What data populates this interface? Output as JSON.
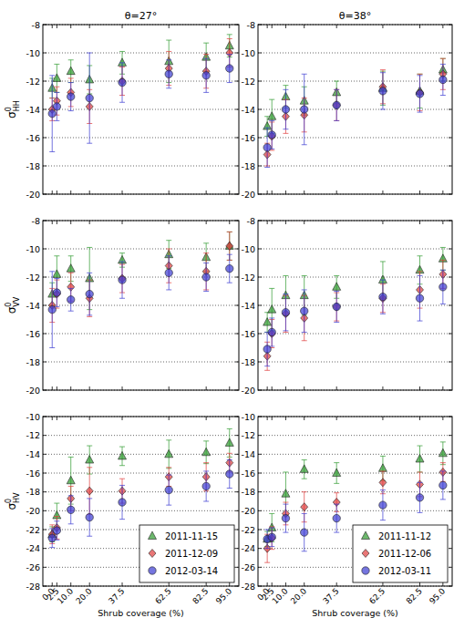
{
  "chart_data": [
    {
      "type": "scatter",
      "title": "θ=27°",
      "ylabel": {
        "text": "σ",
        "sup": "0",
        "sub": "HH"
      },
      "x": [
        0,
        2.5,
        10,
        20,
        37.5,
        62.5,
        82.5,
        95
      ],
      "xlim": [
        -5,
        100
      ],
      "xticks": [
        0,
        2.5,
        10,
        20,
        37.5,
        62.5,
        82.5,
        95
      ],
      "ylim": [
        -20,
        -8
      ],
      "yticks": [
        -20,
        -18,
        -16,
        -14,
        -12,
        -10,
        -8
      ],
      "grid": "y",
      "tick_labels": "y",
      "series": [
        {
          "color": "#2e9a2e",
          "marker": "triangle",
          "values": [
            -12.5,
            -11.8,
            -11.3,
            -11.9,
            -10.7,
            -10.6,
            -10.3,
            -9.5
          ],
          "errors": [
            0.7,
            1.0,
            0.8,
            1.0,
            0.8,
            1.5,
            1.0,
            0.8
          ]
        },
        {
          "color": "#e03c3c",
          "marker": "diamond",
          "values": [
            -14.0,
            -13.4,
            -12.8,
            -13.8,
            -12.0,
            -11.1,
            -11.3,
            -10.0
          ],
          "errors": [
            0.8,
            1.0,
            1.0,
            1.2,
            1.0,
            1.2,
            1.2,
            1.0
          ]
        },
        {
          "color": "#3b3bd1",
          "marker": "circle",
          "values": [
            -14.3,
            -13.8,
            -13.1,
            -13.2,
            -12.1,
            -11.5,
            -11.6,
            -11.1
          ],
          "errors": [
            2.7,
            1.0,
            1.0,
            3.2,
            1.4,
            1.0,
            1.2,
            1.0
          ]
        }
      ]
    },
    {
      "type": "scatter",
      "title": "θ=38°",
      "x": [
        0,
        2.5,
        10,
        20,
        37.5,
        62.5,
        82.5,
        95
      ],
      "xlim": [
        -5,
        100
      ],
      "xticks": [
        0,
        2.5,
        10,
        20,
        37.5,
        62.5,
        82.5,
        95
      ],
      "ylim": [
        -20,
        -8
      ],
      "yticks": [
        -20,
        -18,
        -16,
        -14,
        -12,
        -10,
        -8
      ],
      "grid": "y",
      "tick_labels": "y",
      "series": [
        {
          "color": "#2e9a2e",
          "marker": "triangle",
          "values": [
            -15.2,
            -14.5,
            -13.1,
            -13.4,
            -12.8,
            -12.5,
            -12.7,
            -11.2
          ],
          "errors": [
            0.7,
            1.2,
            0.8,
            1.0,
            0.8,
            1.2,
            1.2,
            0.8
          ]
        },
        {
          "color": "#e03c3c",
          "marker": "diamond",
          "values": [
            -17.2,
            -15.9,
            -14.5,
            -14.4,
            -13.7,
            -12.4,
            -12.8,
            -11.5
          ],
          "errors": [
            0.8,
            1.0,
            1.2,
            1.2,
            1.1,
            1.2,
            1.3,
            1.1
          ]
        },
        {
          "color": "#3b3bd1",
          "marker": "circle",
          "values": [
            -16.7,
            -15.8,
            -14.0,
            -14.0,
            -13.7,
            -12.7,
            -12.9,
            -11.9
          ],
          "errors": [
            1.4,
            1.0,
            1.4,
            2.5,
            1.1,
            1.3,
            1.3,
            1.1
          ]
        }
      ]
    },
    {
      "type": "scatter",
      "ylabel": {
        "text": "σ",
        "sup": "0",
        "sub": "VV"
      },
      "x": [
        0,
        2.5,
        10,
        20,
        37.5,
        62.5,
        82.5,
        95
      ],
      "xlim": [
        -5,
        100
      ],
      "xticks": [
        0,
        2.5,
        10,
        20,
        37.5,
        62.5,
        82.5,
        95
      ],
      "ylim": [
        -20,
        -8
      ],
      "yticks": [
        -20,
        -18,
        -16,
        -14,
        -12,
        -10,
        -8
      ],
      "grid": "y",
      "tick_labels": "y",
      "series": [
        {
          "color": "#2e9a2e",
          "marker": "triangle",
          "values": [
            -13.2,
            -11.8,
            -11.4,
            -12.1,
            -10.8,
            -10.4,
            -10.6,
            -9.8
          ],
          "errors": [
            0.8,
            1.3,
            0.9,
            2.2,
            0.5,
            1.0,
            1.0,
            1.0
          ]
        },
        {
          "color": "#e03c3c",
          "marker": "diamond",
          "values": [
            -14.0,
            -13.2,
            -12.7,
            -13.5,
            -12.1,
            -11.2,
            -11.6,
            -9.8
          ],
          "errors": [
            1.2,
            1.0,
            1.0,
            1.3,
            1.0,
            1.2,
            1.3,
            1.0
          ]
        },
        {
          "color": "#3b3bd1",
          "marker": "circle",
          "values": [
            -14.3,
            -13.1,
            -13.6,
            -13.2,
            -12.2,
            -11.7,
            -12.0,
            -11.4
          ],
          "errors": [
            2.7,
            1.0,
            0.8,
            1.5,
            1.3,
            1.2,
            1.0,
            1.0
          ]
        }
      ]
    },
    {
      "type": "scatter",
      "x": [
        0,
        2.5,
        10,
        20,
        37.5,
        62.5,
        82.5,
        95
      ],
      "xlim": [
        -5,
        100
      ],
      "xticks": [
        0,
        2.5,
        10,
        20,
        37.5,
        62.5,
        82.5,
        95
      ],
      "ylim": [
        -20,
        -8
      ],
      "yticks": [
        -20,
        -18,
        -16,
        -14,
        -12,
        -10,
        -8
      ],
      "grid": "y",
      "tick_labels": "y",
      "series": [
        {
          "color": "#2e9a2e",
          "marker": "triangle",
          "values": [
            -15.2,
            -14.3,
            -13.3,
            -13.3,
            -12.7,
            -12.2,
            -11.5,
            -10.7
          ],
          "errors": [
            0.7,
            1.5,
            1.4,
            1.4,
            0.8,
            1.3,
            1.0,
            0.8
          ]
        },
        {
          "color": "#e03c3c",
          "marker": "diamond",
          "values": [
            -17.6,
            -16.0,
            -14.6,
            -14.9,
            -14.1,
            -13.5,
            -12.9,
            -11.8
          ],
          "errors": [
            1.0,
            1.0,
            1.3,
            1.6,
            1.0,
            1.0,
            1.3,
            1.0
          ]
        },
        {
          "color": "#3b3bd1",
          "marker": "circle",
          "values": [
            -17.1,
            -15.9,
            -14.5,
            -14.4,
            -14.1,
            -13.4,
            -13.5,
            -12.7
          ],
          "errors": [
            1.2,
            1.0,
            1.3,
            1.5,
            1.1,
            1.2,
            1.6,
            1.2
          ]
        }
      ]
    },
    {
      "type": "scatter",
      "ylabel": {
        "text": "σ",
        "sup": "0",
        "sub": "HV"
      },
      "xlabel": "Shrub coverage (%)",
      "x": [
        0,
        2.5,
        10,
        20,
        37.5,
        62.5,
        82.5,
        95
      ],
      "xlim": [
        -5,
        100
      ],
      "xticks": [
        {
          "value": 0,
          "label": "0.0"
        },
        2.5,
        {
          "value": 10,
          "label": "10.0"
        },
        {
          "value": 20,
          "label": "20.0"
        },
        37.5,
        62.5,
        82.5,
        {
          "value": 95,
          "label": "95.0"
        }
      ],
      "ylim": [
        -28,
        -10
      ],
      "yticks": [
        -28,
        -26,
        -24,
        -22,
        -20,
        -18,
        -16,
        -14,
        -12,
        -10
      ],
      "grid": "y",
      "legend": "lower right",
      "series": [
        {
          "name": "2011-11-15",
          "color": "#2e9a2e",
          "marker": "triangle",
          "values": [
            -22.5,
            -20.5,
            -16.8,
            -14.6,
            -14.2,
            -14.0,
            -13.8,
            -12.8
          ],
          "errors": [
            0.8,
            1.3,
            2.5,
            1.5,
            1.0,
            1.5,
            1.2,
            1.5
          ]
        },
        {
          "name": "2011-12-09",
          "color": "#e03c3c",
          "marker": "diamond",
          "values": [
            -22.5,
            -21.8,
            -18.7,
            -17.9,
            -17.9,
            -16.4,
            -16.4,
            -14.9
          ],
          "errors": [
            1.0,
            1.2,
            1.3,
            2.5,
            1.3,
            1.0,
            1.5,
            1.0
          ]
        },
        {
          "name": "2012-03-14",
          "color": "#3b3bd1",
          "marker": "circle",
          "values": [
            -22.9,
            -22.1,
            -19.9,
            -20.7,
            -19.1,
            -17.8,
            -17.4,
            -16.1
          ],
          "errors": [
            1.0,
            1.0,
            1.5,
            2.0,
            1.8,
            1.6,
            1.6,
            1.5
          ]
        }
      ]
    },
    {
      "type": "scatter",
      "xlabel": "Shrub coverage (%)",
      "x": [
        0,
        2.5,
        10,
        20,
        37.5,
        62.5,
        82.5,
        95
      ],
      "xlim": [
        -5,
        100
      ],
      "xticks": [
        {
          "value": 0,
          "label": "0.0"
        },
        2.5,
        {
          "value": 10,
          "label": "10.0"
        },
        {
          "value": 20,
          "label": "20.0"
        },
        37.5,
        62.5,
        82.5,
        {
          "value": 95,
          "label": "95.0"
        }
      ],
      "ylim": [
        -28,
        -10
      ],
      "yticks": [
        -28,
        -26,
        -24,
        -22,
        -20,
        -18,
        -16,
        -14,
        -12,
        -10
      ],
      "grid": "y",
      "legend": "lower right",
      "series": [
        {
          "name": "2011-11-12",
          "color": "#2e9a2e",
          "marker": "triangle",
          "values": [
            -23.0,
            -21.8,
            -18.2,
            -15.6,
            -16.0,
            -15.5,
            -14.5,
            -13.9
          ],
          "errors": [
            0.8,
            1.5,
            2.3,
            1.0,
            1.1,
            1.3,
            1.4,
            1.2
          ]
        },
        {
          "name": "2011-12-06",
          "color": "#e03c3c",
          "marker": "diamond",
          "values": [
            -24.0,
            -22.9,
            -20.3,
            -19.6,
            -19.1,
            -17.0,
            -17.2,
            -15.9
          ],
          "errors": [
            1.5,
            1.2,
            1.2,
            1.6,
            1.0,
            1.2,
            1.3,
            1.0
          ]
        },
        {
          "name": "2012-03-11",
          "color": "#3b3bd1",
          "marker": "circle",
          "values": [
            -23.0,
            -22.8,
            -20.8,
            -22.3,
            -20.8,
            -19.4,
            -18.6,
            -17.3
          ],
          "errors": [
            1.0,
            1.0,
            1.5,
            2.0,
            1.5,
            1.6,
            1.6,
            1.5
          ]
        }
      ]
    }
  ]
}
